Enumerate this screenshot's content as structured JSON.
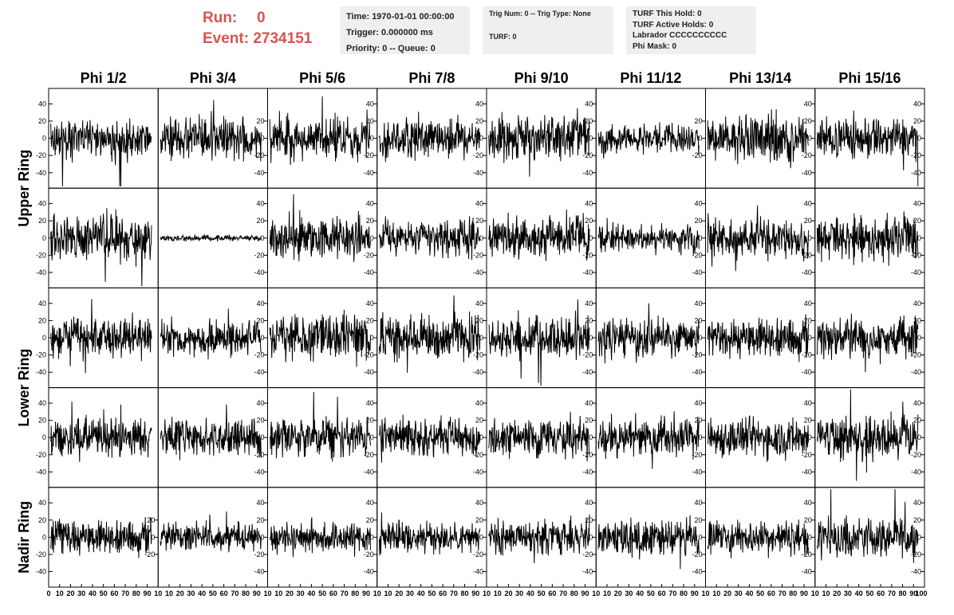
{
  "header": {
    "run_label": "Run:",
    "run_value": "0",
    "event_label": "Event:",
    "event_value": "2734151"
  },
  "info": {
    "time": "Time: 1970-01-01 00:00:00",
    "trigger": "Trigger: 0.000000 ms",
    "priority": "Priority: 0 -- Queue: 0",
    "trig_num": "Trig Num: 0 -- Trig Type: None",
    "turf": "TURF: 0",
    "turf_this_hold": "TURF This Hold: 0",
    "turf_active_holds": "TURF Active Holds: 0",
    "labrador": "Labrador CCCCCCCCCC",
    "phi_mask": "Phi Mask: 0"
  },
  "colors": {
    "header_red": "#d9534f",
    "trace": "#000000",
    "info_bg": "#efefef"
  },
  "chart_data": {
    "type": "line",
    "columns": [
      "Phi 1/2",
      "Phi 3/4",
      "Phi 5/6",
      "Phi 7/8",
      "Phi 9/10",
      "Phi 11/12",
      "Phi 13/14",
      "Phi 15/16"
    ],
    "row_groups": [
      {
        "label": "Upper Ring",
        "rows": [
          0,
          1
        ]
      },
      {
        "label": "Lower Ring",
        "rows": [
          2,
          3
        ]
      },
      {
        "label": "Nadir Ring",
        "rows": [
          4
        ]
      }
    ],
    "xlim": [
      0,
      100
    ],
    "x_ticks": [
      0,
      10,
      20,
      30,
      40,
      50,
      60,
      70,
      80,
      90,
      100
    ],
    "x_tick_labels_bottom": [
      "0",
      "10",
      "20",
      "30",
      "40",
      "50",
      "60",
      "70",
      "80",
      "90",
      "10",
      "10",
      "20",
      "30",
      "40",
      "50",
      "60",
      "70",
      "80",
      "90",
      "10",
      "10",
      "20",
      "30",
      "40",
      "50",
      "60",
      "70",
      "80",
      "90",
      "10",
      "10",
      "20",
      "30",
      "40",
      "50",
      "60",
      "70",
      "80",
      "90",
      "10",
      "10",
      "20",
      "30",
      "40",
      "50",
      "60",
      "70",
      "80",
      "90",
      "10",
      "10",
      "20",
      "30",
      "40",
      "50",
      "60",
      "70",
      "80",
      "90",
      "10",
      "10",
      "20",
      "30",
      "40",
      "50",
      "60",
      "70",
      "80",
      "90",
      "10",
      "10",
      "20",
      "30",
      "40",
      "50",
      "60",
      "70",
      "80",
      "90",
      "100"
    ],
    "ylim": [
      -58,
      58
    ],
    "y_ticks": [
      -40,
      -20,
      0,
      20,
      40
    ],
    "panels": [
      [
        {
          "left_ticks": [
            -40,
            -20,
            0,
            20,
            40
          ],
          "right_ticks": [],
          "amp": 15,
          "seed": 11
        },
        {
          "left_ticks": [],
          "right_ticks": [
            -40,
            -20,
            0,
            20
          ],
          "amp": 14,
          "seed": 12
        },
        {
          "left_ticks": [],
          "right_ticks": [
            -40,
            -20,
            0,
            20,
            40
          ],
          "amp": 15,
          "seed": 13
        },
        {
          "left_ticks": [],
          "right_ticks": [
            -40,
            -20,
            0,
            20,
            40
          ],
          "amp": 15,
          "seed": 14
        },
        {
          "left_ticks": [],
          "right_ticks": [
            -40,
            -20,
            0,
            20,
            40
          ],
          "amp": 16,
          "seed": 15
        },
        {
          "left_ticks": [],
          "right_ticks": [
            -20,
            0,
            20
          ],
          "amp": 11,
          "seed": 16
        },
        {
          "left_ticks": [],
          "right_ticks": [
            -40,
            -20,
            0,
            20,
            40
          ],
          "amp": 16,
          "seed": 17
        },
        {
          "left_ticks": [],
          "right_ticks": [
            -40,
            -20,
            0,
            20,
            40
          ],
          "amp": 15,
          "seed": 18
        }
      ],
      [
        {
          "left_ticks": [
            -40,
            -20,
            0,
            20,
            40
          ],
          "right_ticks": [],
          "amp": 17,
          "seed": 21
        },
        {
          "left_ticks": [],
          "right_ticks": [
            -40,
            -20,
            0,
            20,
            40
          ],
          "amp": 2,
          "seed": 22
        },
        {
          "left_ticks": [],
          "right_ticks": [
            -40,
            -20,
            0,
            20,
            40
          ],
          "amp": 15,
          "seed": 23
        },
        {
          "left_ticks": [],
          "right_ticks": [
            -40,
            -20,
            0,
            20,
            40
          ],
          "amp": 13,
          "seed": 24
        },
        {
          "left_ticks": [],
          "right_ticks": [
            -40,
            -20,
            0,
            20,
            40
          ],
          "amp": 14,
          "seed": 25
        },
        {
          "left_ticks": [],
          "right_ticks": [
            -40,
            -20,
            0,
            20,
            40
          ],
          "amp": 10,
          "seed": 26
        },
        {
          "left_ticks": [],
          "right_ticks": [
            -40,
            -20,
            0,
            20,
            40
          ],
          "amp": 14,
          "seed": 27
        },
        {
          "left_ticks": [],
          "right_ticks": [
            -40,
            -20,
            0,
            20,
            40
          ],
          "amp": 16,
          "seed": 28
        }
      ],
      [
        {
          "left_ticks": [
            -40,
            -20,
            0,
            20,
            40
          ],
          "right_ticks": [],
          "amp": 14,
          "seed": 31
        },
        {
          "left_ticks": [],
          "right_ticks": [
            -40,
            -20,
            0,
            20,
            40
          ],
          "amp": 12,
          "seed": 32
        },
        {
          "left_ticks": [],
          "right_ticks": [
            -40,
            -20,
            0,
            20,
            40
          ],
          "amp": 16,
          "seed": 33
        },
        {
          "left_ticks": [],
          "right_ticks": [
            -40,
            -20,
            0,
            20,
            40
          ],
          "amp": 15,
          "seed": 34
        },
        {
          "left_ticks": [],
          "right_ticks": [
            -40,
            -20,
            0,
            20,
            40
          ],
          "amp": 14,
          "seed": 35
        },
        {
          "left_ticks": [],
          "right_ticks": [
            -40,
            -20,
            0,
            20,
            40
          ],
          "amp": 13,
          "seed": 36
        },
        {
          "left_ticks": [],
          "right_ticks": [
            -40,
            -20,
            0,
            20,
            40
          ],
          "amp": 14,
          "seed": 37
        },
        {
          "left_ticks": [],
          "right_ticks": [
            -40,
            -20,
            0,
            20,
            40
          ],
          "amp": 14,
          "seed": 38
        }
      ],
      [
        {
          "left_ticks": [
            -40,
            -20,
            0,
            20,
            40
          ],
          "right_ticks": [],
          "amp": 14,
          "seed": 41
        },
        {
          "left_ticks": [],
          "right_ticks": [
            -40,
            -20,
            0,
            20,
            40
          ],
          "amp": 13,
          "seed": 42
        },
        {
          "left_ticks": [],
          "right_ticks": [
            -40,
            -20,
            0,
            20,
            40
          ],
          "amp": 14,
          "seed": 43
        },
        {
          "left_ticks": [],
          "right_ticks": [
            -40,
            -20,
            0,
            20,
            40
          ],
          "amp": 14,
          "seed": 44
        },
        {
          "left_ticks": [],
          "right_ticks": [
            -40,
            -20,
            0,
            20,
            40
          ],
          "amp": 14,
          "seed": 45
        },
        {
          "left_ticks": [],
          "right_ticks": [
            -40,
            -20,
            0,
            20,
            40
          ],
          "amp": 13,
          "seed": 46
        },
        {
          "left_ticks": [],
          "right_ticks": [
            -40,
            -20,
            0,
            20,
            40
          ],
          "amp": 14,
          "seed": 47
        },
        {
          "left_ticks": [],
          "right_ticks": [
            -40,
            -20,
            0,
            20,
            40
          ],
          "amp": 15,
          "seed": 48
        }
      ],
      [
        {
          "left_ticks": [
            -40,
            -20,
            0,
            20,
            40
          ],
          "right_ticks": [
            -20,
            0,
            20
          ],
          "amp": 12,
          "seed": 51
        },
        {
          "left_ticks": [],
          "right_ticks": [
            -40,
            -20,
            0,
            20,
            40
          ],
          "amp": 10,
          "seed": 52
        },
        {
          "left_ticks": [],
          "right_ticks": [
            -40,
            -20,
            0,
            20,
            40
          ],
          "amp": 11,
          "seed": 53
        },
        {
          "left_ticks": [],
          "right_ticks": [
            -40,
            -20,
            0,
            20,
            40
          ],
          "amp": 11,
          "seed": 54
        },
        {
          "left_ticks": [],
          "right_ticks": [
            -40,
            -20,
            0,
            20,
            40
          ],
          "amp": 12,
          "seed": 55
        },
        {
          "left_ticks": [],
          "right_ticks": [
            -40,
            -20,
            0,
            20,
            40
          ],
          "amp": 13,
          "seed": 56
        },
        {
          "left_ticks": [],
          "right_ticks": [
            -40,
            -20,
            0,
            20,
            40
          ],
          "amp": 12,
          "seed": 57
        },
        {
          "left_ticks": [],
          "right_ticks": [
            -40,
            -20,
            0,
            20,
            40
          ],
          "amp": 14,
          "seed": 58
        }
      ]
    ]
  }
}
